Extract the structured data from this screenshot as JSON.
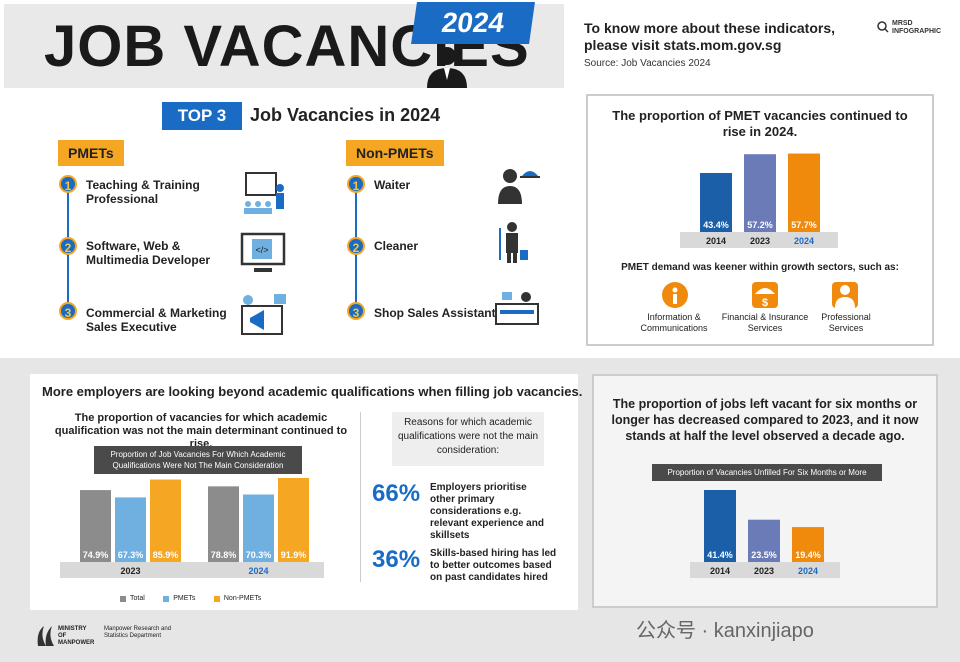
{
  "header": {
    "title": "JOB VACANCIES",
    "year": "2024",
    "info": "To know more about these indicators, please visit stats.mom.gov.sg",
    "source": "Source: Job Vacancies 2024",
    "mrsd": "MRSD INFOGRAPHIC"
  },
  "top3": {
    "banner": "TOP 3",
    "title": "Job Vacancies in 2024",
    "pmet_label": "PMETs",
    "nonpmet_label": "Non-PMETs",
    "pmets": [
      "Teaching & Training Professional",
      "Software, Web & Multimedia Developer",
      "Commercial & Marketing Sales Executive"
    ],
    "nonpmets": [
      "Waiter",
      "Cleaner",
      "Shop Sales Assistant"
    ],
    "numbers": [
      "1",
      "2",
      "3"
    ]
  },
  "pmet_panel": {
    "title": "The proportion of PMET vacancies continued to rise in 2024.",
    "growth_text": "PMET demand was keener within growth sectors, such as:",
    "sectors": [
      "Information & Communications",
      "Financial & Insurance Services",
      "Professional Services"
    ]
  },
  "academic": {
    "headline": "More employers are looking beyond academic qualifications when filling job vacancies.",
    "subhead": "The proportion of vacancies for which academic qualification was not the main determinant continued to rise.",
    "chart_label": "Proportion of Job Vacancies For Which Academic Qualifications Were Not The Main Consideration",
    "reasons_title": "Reasons for which academic qualifications were not the main consideration:",
    "reason1_pct": "66%",
    "reason1_text": "Employers prioritise other primary considerations e.g. relevant experience and skillsets",
    "reason2_pct": "36%",
    "reason2_text": "Skills-based hiring has led to better outcomes based on past candidates hired"
  },
  "longterm": {
    "title": "The proportion of jobs left vacant for six months or longer has decreased compared to 2023, and it now stands at half the level observed a decade ago.",
    "chart_label": "Proportion of Vacancies Unfilled For Six Months or More"
  },
  "footer": {
    "ministry": "MINISTRY OF MANPOWER",
    "dept": "Manpower Research and Statistics Department",
    "watermark": "公众号 · kanxinjiapo"
  },
  "chart_data": [
    {
      "type": "bar",
      "categories": [
        "2014",
        "2023",
        "2024"
      ],
      "values": [
        43.4,
        57.2,
        57.7
      ],
      "labels": [
        "43.4%",
        "57.2%",
        "57.7%"
      ],
      "colors": [
        "#1a5fa8",
        "#6b7bb8",
        "#f08a0c"
      ]
    },
    {
      "type": "bar",
      "categories": [
        "2023",
        "2024"
      ],
      "series": [
        {
          "name": "Total",
          "values": [
            74.9,
            78.8
          ],
          "labels": [
            "74.9%",
            "78.8%"
          ],
          "color": "#8c8c8c"
        },
        {
          "name": "PMETs",
          "values": [
            67.3,
            70.3
          ],
          "labels": [
            "67.3%",
            "70.3%"
          ],
          "color": "#6fb0e0"
        },
        {
          "name": "Non-PMETs",
          "values": [
            85.9,
            91.9
          ],
          "labels": [
            "85.9%",
            "91.9%"
          ],
          "color": "#f5a623"
        }
      ]
    },
    {
      "type": "bar",
      "categories": [
        "2014",
        "2023",
        "2024"
      ],
      "values": [
        41.4,
        23.5,
        19.4
      ],
      "labels": [
        "41.4%",
        "23.5%",
        "19.4%"
      ],
      "colors": [
        "#1a5fa8",
        "#6b7bb8",
        "#f08a0c"
      ]
    }
  ]
}
